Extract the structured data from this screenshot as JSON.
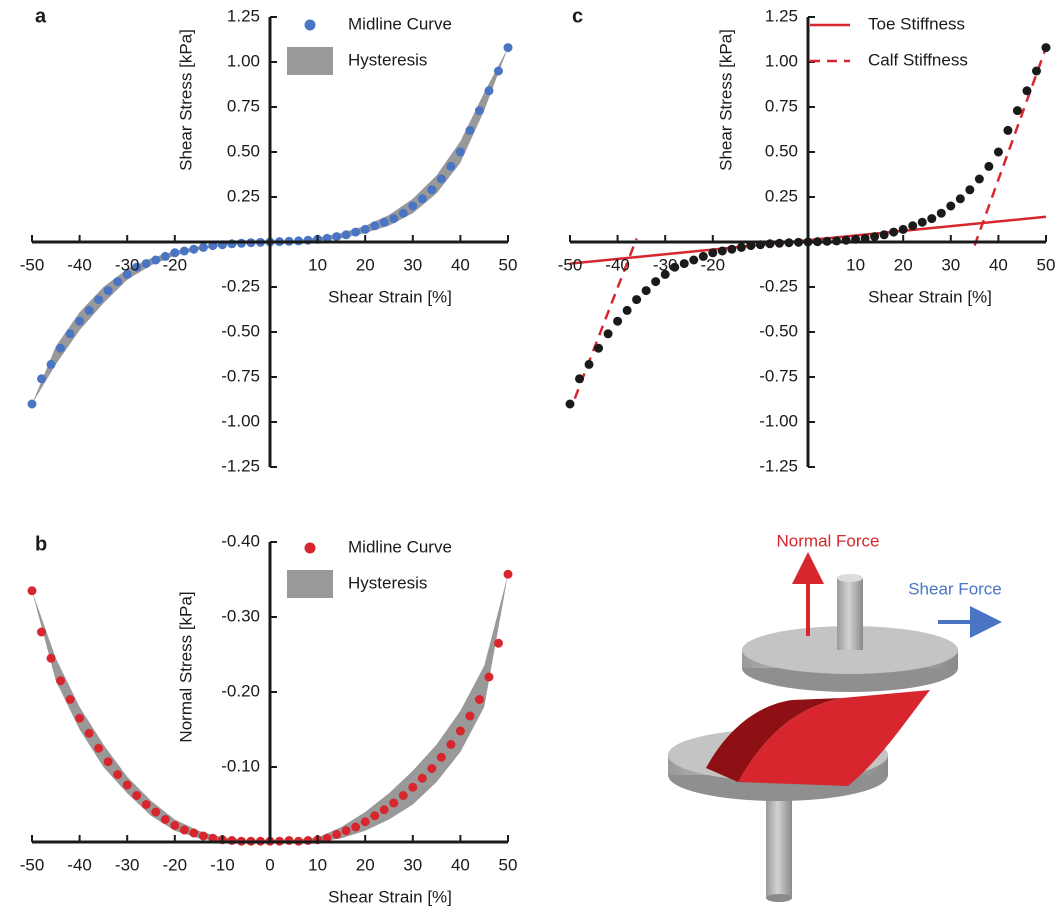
{
  "chart_data": [
    {
      "type": "scatter",
      "panel": "a",
      "xlabel": "Shear Strain  [%]",
      "ylabel": "Shear Stress [kPa]",
      "xlim": [
        -50,
        50
      ],
      "ylim": [
        -1.25,
        1.25
      ],
      "xticks": [
        -50,
        -40,
        -30,
        -20,
        10,
        20,
        30,
        40,
        50
      ],
      "yticks": [
        -1.25,
        {
          "value": -1.0,
          "label": "-1.00"
        },
        -0.75,
        {
          "value": -0.5,
          "label": "-0.50"
        },
        -0.25,
        0.25,
        {
          "value": 0.5,
          "label": "0.50"
        },
        0.75,
        {
          "value": 1.0,
          "label": "1.00"
        },
        1.25
      ],
      "series": [
        {
          "name": "Midline Curve",
          "color": "#4a74c4",
          "type": "scatter",
          "x": [
            -50,
            -48,
            -46,
            -44,
            -42,
            -40,
            -38,
            -36,
            -34,
            -32,
            -30,
            -28,
            -26,
            -24,
            -22,
            -20,
            -18,
            -16,
            -14,
            -12,
            -10,
            -8,
            -6,
            -4,
            -2,
            0,
            2,
            4,
            6,
            8,
            10,
            12,
            14,
            16,
            18,
            20,
            22,
            24,
            26,
            28,
            30,
            32,
            34,
            36,
            38,
            40,
            42,
            44,
            46,
            48,
            50
          ],
          "values": [
            -0.9,
            -0.76,
            -0.68,
            -0.59,
            -0.51,
            -0.44,
            -0.38,
            -0.32,
            -0.27,
            -0.22,
            -0.18,
            -0.14,
            -0.12,
            -0.1,
            -0.08,
            -0.06,
            -0.05,
            -0.04,
            -0.03,
            -0.02,
            -0.015,
            -0.01,
            -0.007,
            -0.004,
            -0.002,
            0,
            0.002,
            0.004,
            0.006,
            0.01,
            0.015,
            0.02,
            0.03,
            0.04,
            0.055,
            0.07,
            0.09,
            0.11,
            0.13,
            0.16,
            0.2,
            0.24,
            0.29,
            0.35,
            0.42,
            0.5,
            0.62,
            0.73,
            0.84,
            0.95,
            1.08
          ]
        },
        {
          "name": "Hysteresis",
          "color": "#999999",
          "type": "band",
          "x": [
            -50,
            -45,
            -40,
            -35,
            -30,
            -25,
            -20,
            -15,
            -10,
            -5,
            0,
            5,
            10,
            15,
            20,
            25,
            30,
            35,
            40,
            45,
            50
          ],
          "upper": [
            -0.9,
            -0.58,
            -0.39,
            -0.25,
            -0.15,
            -0.09,
            -0.05,
            -0.025,
            -0.01,
            -0.002,
            0.005,
            0.01,
            0.025,
            0.05,
            0.09,
            0.15,
            0.24,
            0.37,
            0.56,
            0.83,
            1.08
          ],
          "lower": [
            -0.9,
            -0.68,
            -0.49,
            -0.34,
            -0.21,
            -0.13,
            -0.075,
            -0.045,
            -0.02,
            -0.008,
            -0.005,
            0,
            0.008,
            0.02,
            0.05,
            0.09,
            0.16,
            0.27,
            0.44,
            0.73,
            1.08
          ]
        }
      ]
    },
    {
      "type": "scatter",
      "panel": "b",
      "xlabel": "Shear Strain  [%]",
      "ylabel": "Normal Stress [kPa]",
      "xlim": [
        -50,
        50
      ],
      "ylim": [
        0,
        -0.4
      ],
      "xticks": [
        -50,
        -40,
        -30,
        -20,
        -10,
        0,
        10,
        20,
        30,
        40,
        50
      ],
      "yticks": [
        {
          "value": -0.1,
          "label": "-0.10"
        },
        {
          "value": -0.2,
          "label": "-0.20"
        },
        {
          "value": -0.3,
          "label": "-0.30"
        },
        {
          "value": -0.4,
          "label": "-0.40"
        }
      ],
      "series": [
        {
          "name": "Midline Curve",
          "color": "#d7262e",
          "type": "scatter",
          "x": [
            -50,
            -48,
            -46,
            -44,
            -42,
            -40,
            -38,
            -36,
            -34,
            -32,
            -30,
            -28,
            -26,
            -24,
            -22,
            -20,
            -18,
            -16,
            -14,
            -12,
            -10,
            -8,
            -6,
            -4,
            -2,
            0,
            2,
            4,
            6,
            8,
            10,
            12,
            14,
            16,
            18,
            20,
            22,
            24,
            26,
            28,
            30,
            32,
            34,
            36,
            38,
            40,
            42,
            44,
            46,
            48,
            50
          ],
          "values": [
            -0.335,
            -0.28,
            -0.245,
            -0.215,
            -0.19,
            -0.165,
            -0.145,
            -0.125,
            -0.107,
            -0.09,
            -0.076,
            -0.062,
            -0.05,
            -0.04,
            -0.03,
            -0.022,
            -0.016,
            -0.012,
            -0.008,
            -0.005,
            -0.003,
            -0.002,
            -0.001,
            -0.001,
            -0.001,
            -0.001,
            -0.001,
            -0.002,
            -0.001,
            -0.002,
            -0.003,
            -0.005,
            -0.01,
            -0.015,
            -0.02,
            -0.027,
            -0.035,
            -0.043,
            -0.052,
            -0.062,
            -0.073,
            -0.085,
            -0.098,
            -0.113,
            -0.13,
            -0.148,
            -0.168,
            -0.19,
            -0.22,
            -0.265,
            -0.357
          ]
        },
        {
          "name": "Hysteresis",
          "color": "#999999",
          "type": "band",
          "x": [
            -50,
            -45,
            -40,
            -35,
            -30,
            -25,
            -20,
            -15,
            -10,
            -5,
            0,
            5,
            10,
            15,
            20,
            25,
            30,
            35,
            40,
            45,
            50
          ],
          "upper": [
            -0.335,
            -0.215,
            -0.15,
            -0.1,
            -0.065,
            -0.035,
            -0.015,
            -0.005,
            0,
            0,
            0,
            0,
            0,
            -0.005,
            -0.015,
            -0.03,
            -0.05,
            -0.08,
            -0.12,
            -0.18,
            -0.357
          ],
          "lower": [
            -0.335,
            -0.245,
            -0.18,
            -0.13,
            -0.087,
            -0.055,
            -0.03,
            -0.015,
            -0.006,
            -0.003,
            -0.003,
            -0.003,
            -0.006,
            -0.02,
            -0.04,
            -0.065,
            -0.095,
            -0.13,
            -0.175,
            -0.235,
            -0.357
          ]
        }
      ]
    },
    {
      "type": "scatter",
      "panel": "c",
      "xlabel": "Shear Strain  [%]",
      "ylabel": "Shear Stress [kPa]",
      "xlim": [
        -50,
        50
      ],
      "ylim": [
        -1.25,
        1.25
      ],
      "xticks": [
        -50,
        -40,
        -30,
        -20,
        10,
        20,
        30,
        40,
        50
      ],
      "yticks": [
        -1.25,
        {
          "value": -1.0,
          "label": "-1.00"
        },
        -0.75,
        {
          "value": -0.5,
          "label": "-0.50"
        },
        -0.25,
        0.25,
        {
          "value": 0.5,
          "label": "0.50"
        },
        0.75,
        {
          "value": 1.0,
          "label": "1.00"
        },
        1.25
      ],
      "series": [
        {
          "color": "#1a1a1a",
          "type": "scatter",
          "x": [
            -50,
            -48,
            -46,
            -44,
            -42,
            -40,
            -38,
            -36,
            -34,
            -32,
            -30,
            -28,
            -26,
            -24,
            -22,
            -20,
            -18,
            -16,
            -14,
            -12,
            -10,
            -8,
            -6,
            -4,
            -2,
            0,
            2,
            4,
            6,
            8,
            10,
            12,
            14,
            16,
            18,
            20,
            22,
            24,
            26,
            28,
            30,
            32,
            34,
            36,
            38,
            40,
            42,
            44,
            46,
            48,
            50
          ],
          "values": [
            -0.9,
            -0.76,
            -0.68,
            -0.59,
            -0.51,
            -0.44,
            -0.38,
            -0.32,
            -0.27,
            -0.22,
            -0.18,
            -0.14,
            -0.12,
            -0.1,
            -0.08,
            -0.06,
            -0.05,
            -0.04,
            -0.03,
            -0.02,
            -0.015,
            -0.01,
            -0.007,
            -0.004,
            -0.002,
            0,
            0.002,
            0.004,
            0.006,
            0.01,
            0.015,
            0.02,
            0.03,
            0.04,
            0.055,
            0.07,
            0.09,
            0.11,
            0.13,
            0.16,
            0.2,
            0.24,
            0.29,
            0.35,
            0.42,
            0.5,
            0.62,
            0.73,
            0.84,
            0.95,
            1.08
          ]
        },
        {
          "name": "Toe Stiffness",
          "color": "#d7262e",
          "type": "line",
          "x": [
            -50,
            50
          ],
          "values": [
            -0.12,
            0.14
          ]
        },
        {
          "name": "Calf Stiffness",
          "color": "#d7262e",
          "type": "line",
          "dash": true,
          "segments": [
            {
              "x": [
                -49,
                -36
              ],
              "values": [
                -0.87,
                0.02
              ]
            },
            {
              "x": [
                35,
                50
              ],
              "values": [
                -0.02,
                1.08
              ]
            }
          ]
        }
      ]
    }
  ],
  "diagram": {
    "normal_force": "Normal Force",
    "shear_force": "Shear Force"
  }
}
